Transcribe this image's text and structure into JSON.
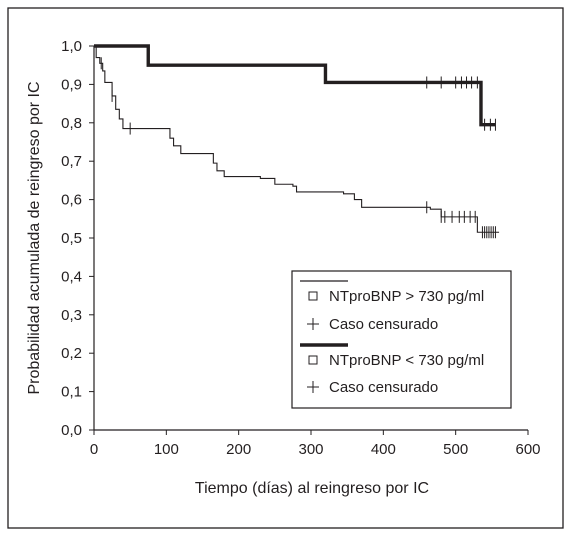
{
  "chart_data": {
    "type": "line",
    "xlabel": "Tiempo (días) al reingreso por IC",
    "ylabel": "Probabilidad acumulada de reingreso por IC",
    "xlim": [
      0,
      600
    ],
    "ylim": [
      0,
      1
    ],
    "x_ticks": [
      0,
      100,
      200,
      300,
      400,
      500,
      600
    ],
    "x_tick_labels": [
      "0",
      "100",
      "200",
      "300",
      "400",
      "500",
      "600"
    ],
    "y_ticks": [
      0,
      0.1,
      0.2,
      0.3,
      0.4,
      0.5,
      0.6,
      0.7,
      0.8,
      0.9,
      1.0
    ],
    "y_tick_labels": [
      "0,0",
      "0,1",
      "0,2",
      "0,3",
      "0,4",
      "0,5",
      "0,6",
      "0,7",
      "0,8",
      "0,9",
      "1,0"
    ],
    "grid": false,
    "legend_position": "bottom-right",
    "legend": [
      {
        "style": "thin",
        "label": "NTproBNP > 730 pg/ml",
        "censored_label": "Caso censurado"
      },
      {
        "style": "thick",
        "label": "NTproBNP < 730 pg/ml",
        "censored_label": "Caso censurado"
      }
    ],
    "series": [
      {
        "style": "thin",
        "steps": [
          [
            0,
            1.0
          ],
          [
            3,
            0.97
          ],
          [
            8,
            0.955
          ],
          [
            12,
            0.935
          ],
          [
            15,
            0.905
          ],
          [
            25,
            0.87
          ],
          [
            30,
            0.835
          ],
          [
            35,
            0.81
          ],
          [
            40,
            0.785
          ],
          [
            105,
            0.76
          ],
          [
            110,
            0.74
          ],
          [
            120,
            0.72
          ],
          [
            165,
            0.695
          ],
          [
            170,
            0.675
          ],
          [
            180,
            0.66
          ],
          [
            230,
            0.655
          ],
          [
            250,
            0.64
          ],
          [
            275,
            0.635
          ],
          [
            280,
            0.62
          ],
          [
            345,
            0.615
          ],
          [
            360,
            0.6
          ],
          [
            370,
            0.58
          ],
          [
            465,
            0.575
          ],
          [
            480,
            0.555
          ],
          [
            530,
            0.515
          ],
          [
            560,
            0.515
          ]
        ],
        "censored": [
          10,
          25,
          50,
          460,
          480,
          485,
          495,
          505,
          512,
          520,
          527,
          537,
          540,
          543,
          546,
          549,
          552,
          555
        ]
      },
      {
        "style": "thick",
        "steps": [
          [
            0,
            1.0
          ],
          [
            75,
            0.95
          ],
          [
            320,
            0.905
          ],
          [
            535,
            0.795
          ],
          [
            555,
            0.795
          ]
        ],
        "censored": [
          460,
          480,
          500,
          508,
          515,
          522,
          530,
          540,
          548,
          555
        ]
      }
    ]
  }
}
